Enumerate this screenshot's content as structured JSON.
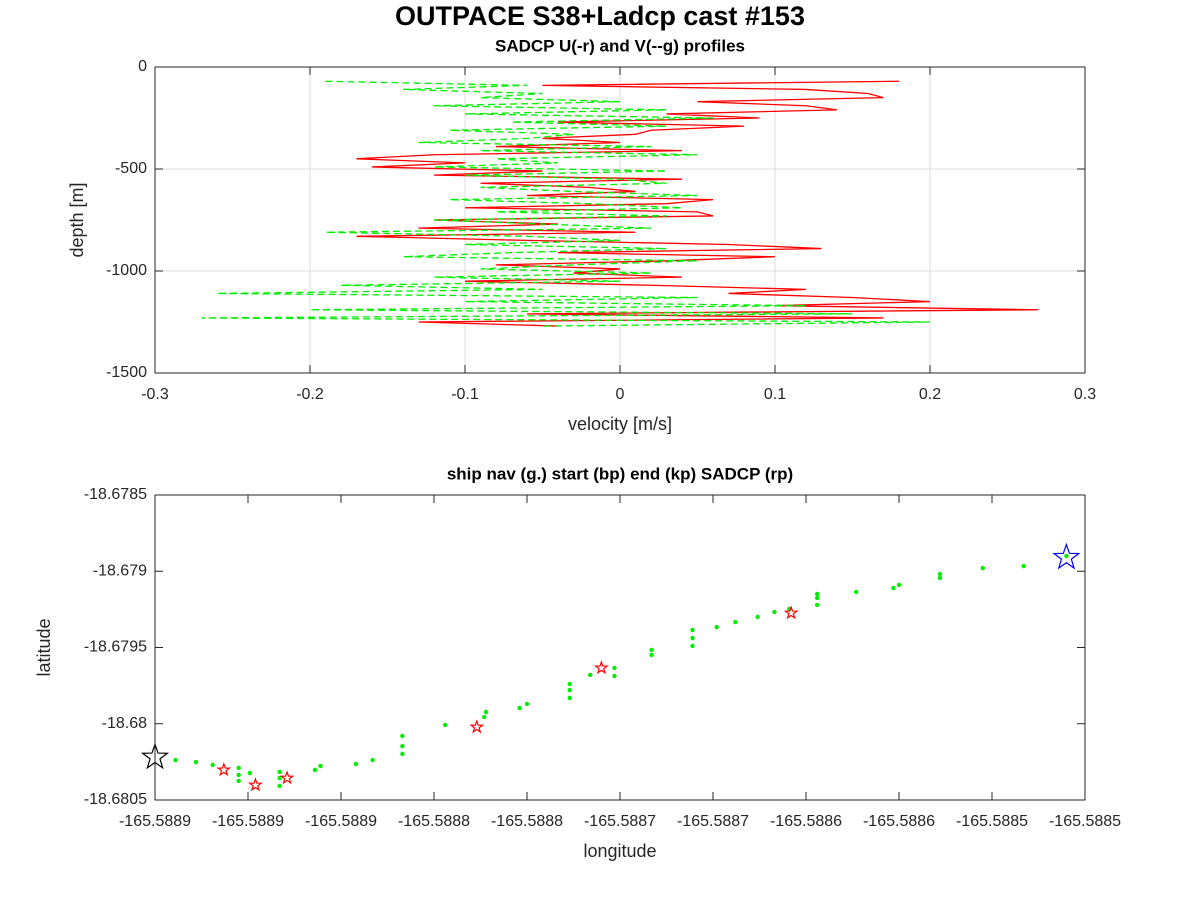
{
  "title": "OUTPACE S38+Ladcp cast #153",
  "chart_data": [
    {
      "type": "line",
      "title": "SADCP U(-r) and V(--g) profiles",
      "x_label": "velocity [m/s]",
      "y_label": "depth [m]",
      "y": [
        -70,
        -90,
        -110,
        -130,
        -150,
        -170,
        -190,
        -210,
        -230,
        -250,
        -270,
        -290,
        -310,
        -330,
        -350,
        -370,
        -390,
        -410,
        -430,
        -450,
        -470,
        -490,
        -510,
        -530,
        -550,
        -570,
        -590,
        -610,
        -630,
        -650,
        -670,
        -690,
        -710,
        -730,
        -750,
        -770,
        -790,
        -810,
        -830,
        -850,
        -870,
        -890,
        -910,
        -930,
        -950,
        -970,
        -990,
        -1010,
        -1030,
        -1050,
        -1070,
        -1090,
        -1110,
        -1130,
        -1150,
        -1170,
        -1190,
        -1210,
        -1230,
        -1250,
        -1270
      ],
      "series": [
        {
          "color": "#ff0000",
          "dash": "solid",
          "values": [
            0.18,
            -0.05,
            0.12,
            0.16,
            0.17,
            0.05,
            0.12,
            0.14,
            0.03,
            0.09,
            -0.04,
            0.08,
            0.02,
            0.01,
            -0.05,
            0.0,
            -0.08,
            0.04,
            -0.12,
            -0.17,
            -0.1,
            -0.16,
            -0.05,
            -0.12,
            0.04,
            -0.09,
            -0.02,
            0.01,
            -0.06,
            0.06,
            0.03,
            -0.1,
            0.05,
            0.06,
            -0.12,
            -0.04,
            -0.13,
            0.01,
            -0.17,
            -0.06,
            0.07,
            0.13,
            -0.04,
            0.1,
            0.03,
            -0.08,
            0.0,
            -0.03,
            0.04,
            -0.1,
            0.02,
            0.12,
            0.07,
            0.15,
            0.2,
            0.1,
            0.27,
            -0.06,
            0.17,
            -0.13,
            -0.04
          ]
        },
        {
          "color": "#00ee00",
          "dash": "dashed",
          "values": [
            -0.19,
            -0.06,
            -0.14,
            -0.05,
            -0.09,
            0.0,
            -0.12,
            0.03,
            -0.1,
            0.06,
            -0.07,
            0.03,
            -0.11,
            -0.03,
            -0.06,
            -0.13,
            0.02,
            -0.09,
            0.05,
            -0.08,
            -0.04,
            -0.12,
            0.03,
            -0.1,
            0.0,
            0.03,
            -0.09,
            -0.03,
            0.05,
            -0.11,
            -0.02,
            0.04,
            -0.08,
            0.03,
            -0.12,
            -0.05,
            0.02,
            -0.19,
            -0.06,
            0.0,
            -0.1,
            0.03,
            -0.07,
            -0.14,
            0.05,
            -0.03,
            -0.09,
            0.02,
            -0.12,
            0.0,
            -0.18,
            -0.05,
            -0.26,
            0.05,
            -0.1,
            0.12,
            -0.2,
            0.15,
            -0.27,
            0.2,
            -0.05
          ]
        }
      ],
      "xlim": [
        -0.3,
        0.3
      ],
      "xticks": [
        -0.3,
        -0.2,
        -0.1,
        0,
        0.1,
        0.2,
        0.3
      ],
      "ylim": [
        -1500,
        0
      ],
      "yticks": [
        -1500,
        -1000,
        -500,
        0
      ],
      "grid": true
    },
    {
      "type": "scatter",
      "title": "ship nav (g.) start (bp) end (kp) SADCP (rp)",
      "x_label": "longitude",
      "y_label": "latitude",
      "series": [
        {
          "color": "#00ee00",
          "marker": "dot",
          "x": [
            -165.588939,
            -165.588928,
            -165.588919,
            -165.588905,
            -165.588905,
            -165.588905,
            -165.588899,
            -165.588883,
            -165.588883,
            -165.588883,
            -165.588864,
            -165.588861,
            -165.588842,
            -165.588833,
            -165.588817,
            -165.588817,
            -165.588817,
            -165.588794,
            -165.588773,
            -165.588772,
            -165.588754,
            -165.58875,
            -165.588727,
            -165.588727,
            -165.588727,
            -165.588716,
            -165.588703,
            -165.588703,
            -165.588683,
            -165.588683,
            -165.588661,
            -165.588661,
            -165.588661,
            -165.588648,
            -165.588638,
            -165.588626,
            -165.588617,
            -165.588609,
            -165.588594,
            -165.588594,
            -165.588594,
            -165.588573,
            -165.588553,
            -165.58855,
            -165.588528,
            -165.588528,
            -165.588505,
            -165.588483,
            -165.58846
          ],
          "values": [
            -18.680238,
            -18.680251,
            -18.68027,
            -18.68029,
            -18.680336,
            -18.680375,
            -18.680323,
            -18.680316,
            -18.680356,
            -18.680408,
            -18.680303,
            -18.680277,
            -18.680264,
            -18.680238,
            -18.680198,
            -18.680146,
            -18.68008,
            -18.680008,
            -18.679956,
            -18.679923,
            -18.679897,
            -18.67987,
            -18.679831,
            -18.679779,
            -18.679739,
            -18.67968,
            -18.679634,
            -18.679687,
            -18.679549,
            -18.679516,
            -18.67949,
            -18.679438,
            -18.679385,
            -18.679366,
            -18.679333,
            -18.6793,
            -18.679267,
            -18.679248,
            -18.679221,
            -18.679175,
            -18.679149,
            -18.679136,
            -18.67911,
            -18.67909,
            -18.679044,
            -18.679018,
            -18.678979,
            -18.678966,
            -18.6789
          ]
        },
        {
          "color": "#ff0000",
          "marker": "star-small",
          "x": [
            -165.588913,
            -165.588896,
            -165.588879,
            -165.588777,
            -165.58871,
            -165.588608
          ],
          "values": [
            -18.680303,
            -18.680402,
            -18.680356,
            -18.680022,
            -18.679634,
            -18.679274
          ]
        },
        {
          "color": "#0000ff",
          "marker": "star-large",
          "x": [
            -165.58846
          ],
          "values": [
            -18.67891
          ]
        },
        {
          "color": "#000000",
          "marker": "star-large",
          "x": [
            -165.58895
          ],
          "values": [
            -18.68022
          ]
        }
      ],
      "xlim": [
        -165.58895,
        -165.58845
      ],
      "xticks": [
        {
          "value": -165.58895,
          "label": "-165.5889"
        },
        {
          "value": -165.5889,
          "label": "-165.5889"
        },
        {
          "value": -165.58885,
          "label": "-165.5889"
        },
        {
          "value": -165.5888,
          "label": "-165.5888"
        },
        {
          "value": -165.58875,
          "label": "-165.5888"
        },
        {
          "value": -165.5887,
          "label": "-165.5887"
        },
        {
          "value": -165.58865,
          "label": "-165.5887"
        },
        {
          "value": -165.5886,
          "label": "-165.5886"
        },
        {
          "value": -165.58855,
          "label": "-165.5886"
        },
        {
          "value": -165.5885,
          "label": "-165.5885"
        },
        {
          "value": -165.58845,
          "label": "-165.5885"
        }
      ],
      "ylim": [
        -18.6805,
        -18.6785
      ],
      "yticks": [
        -18.6805,
        -18.68,
        -18.6795,
        -18.679,
        -18.6785
      ],
      "grid": false
    }
  ]
}
